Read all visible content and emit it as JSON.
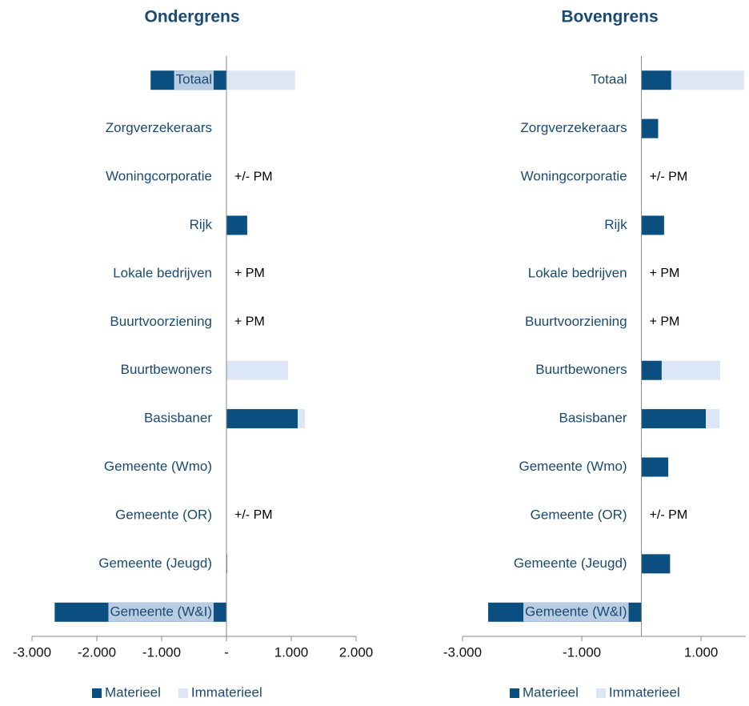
{
  "chart_data": [
    {
      "type": "bar",
      "orientation": "horizontal",
      "stacked": true,
      "title": "Ondergrens",
      "categories": [
        "Totaal",
        "Zorgverzekeraars",
        "Woningcorporatie",
        "Rijk",
        "Lokale bedrijven",
        "Buurtvoorziening",
        "Buurtbewoners",
        "Basisbaner",
        "Gemeente (Wmo)",
        "Gemeente (OR)",
        "Gemeente (Jeugd)",
        "Gemeente (W&I)"
      ],
      "series": [
        {
          "name": "Materieel",
          "color": "#0b4f80",
          "values": [
            -1170,
            0,
            0,
            320,
            0,
            0,
            0,
            1100,
            0,
            0,
            10,
            -2650
          ]
        },
        {
          "name": "Immaterieel",
          "color": "#dce6f4",
          "values": [
            1060,
            0,
            0,
            0,
            0,
            0,
            950,
            110,
            0,
            0,
            0,
            0
          ]
        }
      ],
      "xlim": [
        -3000,
        2000
      ],
      "xticks": [
        {
          "value": -3000,
          "label": "-3.000"
        },
        {
          "value": -2000,
          "label": "-2.000"
        },
        {
          "value": -1000,
          "label": "-1.000"
        },
        {
          "value": 0,
          "label": "-"
        },
        {
          "value": 1000,
          "label": "1.000"
        },
        {
          "value": 2000,
          "label": "2.000"
        }
      ],
      "annotations": [
        {
          "text": "+/- PM",
          "category": "Woningcorporatie"
        },
        {
          "text": "+ PM",
          "category": "Lokale bedrijven"
        },
        {
          "text": "+ PM",
          "category": "Buurtvoorziening"
        },
        {
          "text": "+/- PM",
          "category": "Gemeente (OR)"
        }
      ],
      "legend": "bottom"
    },
    {
      "type": "bar",
      "orientation": "horizontal",
      "stacked": true,
      "title": "Bovengrens",
      "categories": [
        "Totaal",
        "Zorgverzekeraars",
        "Woningcorporatie",
        "Rijk",
        "Lokale bedrijven",
        "Buurtvoorziening",
        "Buurtbewoners",
        "Basisbaner",
        "Gemeente (Wmo)",
        "Gemeente (OR)",
        "Gemeente (Jeugd)",
        "Gemeente (W&I)"
      ],
      "series": [
        {
          "name": "Materieel",
          "color": "#0b4f80",
          "values": [
            500,
            280,
            0,
            380,
            0,
            0,
            340,
            1080,
            450,
            0,
            480,
            -2570
          ]
        },
        {
          "name": "Immaterieel",
          "color": "#dce6f4",
          "values": [
            1220,
            0,
            0,
            0,
            0,
            0,
            980,
            230,
            0,
            0,
            0,
            0
          ]
        }
      ],
      "xlim": [
        -3000,
        1750
      ],
      "xticks": [
        {
          "value": -3000,
          "label": "-3.000"
        },
        {
          "value": -1000,
          "label": "-1.000"
        },
        {
          "value": 1000,
          "label": "1.000"
        }
      ],
      "annotations": [
        {
          "text": "+/- PM",
          "category": "Woningcorporatie"
        },
        {
          "text": "+ PM",
          "category": "Lokale bedrijven"
        },
        {
          "text": "+ PM",
          "category": "Buurtvoorziening"
        },
        {
          "text": "+/- PM",
          "category": "Gemeente (OR)"
        }
      ],
      "legend": "bottom"
    }
  ]
}
